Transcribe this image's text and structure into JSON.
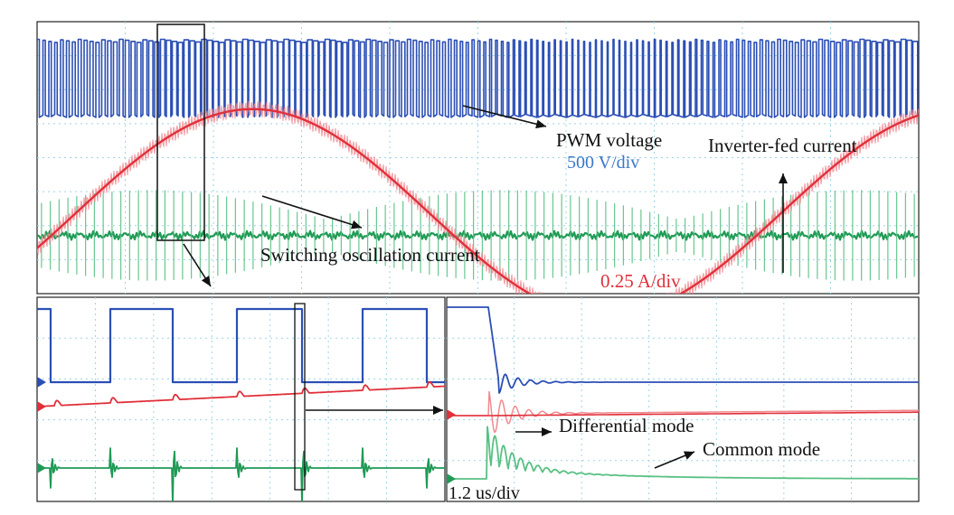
{
  "colors": {
    "pwm": "#2b4fb5",
    "current": "#e0303a",
    "current_light": "#f08a90",
    "oscillation": "#1f9a55",
    "oscillation_light": "#59c083",
    "grid": "#9dd3e6",
    "frame": "#222222",
    "annotation": "#111111",
    "pwm_scale": "#3a78c9"
  },
  "chart_data": [
    {
      "type": "line",
      "panel": "top",
      "series": [
        {
          "color_key": "pwm",
          "kind": "square",
          "high": 3.9,
          "low": 2.75,
          "switching_cycles": 150
        },
        {
          "color_key": "current",
          "kind": "sine",
          "offset": 0.9,
          "amplitude": 1.6,
          "cycles": 1.25,
          "phase_deg": -20,
          "ripple": 0.12
        },
        {
          "color_key": "oscillation",
          "kind": "burst",
          "baseline": 0.9,
          "envelope_max": 0.7,
          "pulses": 100
        }
      ],
      "annotations": {
        "pwm_label": "PWM voltage",
        "pwm_scale": "500 V/div",
        "current_label": "Inverter-fed current",
        "current_scale": "0.25 A/div",
        "oscillation_label": "Switching oscillation current"
      }
    },
    {
      "type": "line",
      "panel": "bottom-left",
      "series": [
        {
          "color_key": "pwm",
          "kind": "square",
          "pulses": 4
        },
        {
          "color_key": "current",
          "kind": "ramp",
          "spikes": 10
        },
        {
          "color_key": "oscillation",
          "kind": "spikes",
          "spikes": 10
        }
      ]
    },
    {
      "type": "line",
      "panel": "bottom-right",
      "series": [
        {
          "color_key": "pwm",
          "kind": "step-ringing"
        },
        {
          "color_key": "current",
          "kind": "step-ringing"
        },
        {
          "color_key": "oscillation",
          "kind": "damped-ringing"
        }
      ],
      "annotations": {
        "dm_label": "Differential mode",
        "cm_label": "Common mode",
        "time_scale": "1.2 us/div"
      }
    }
  ]
}
